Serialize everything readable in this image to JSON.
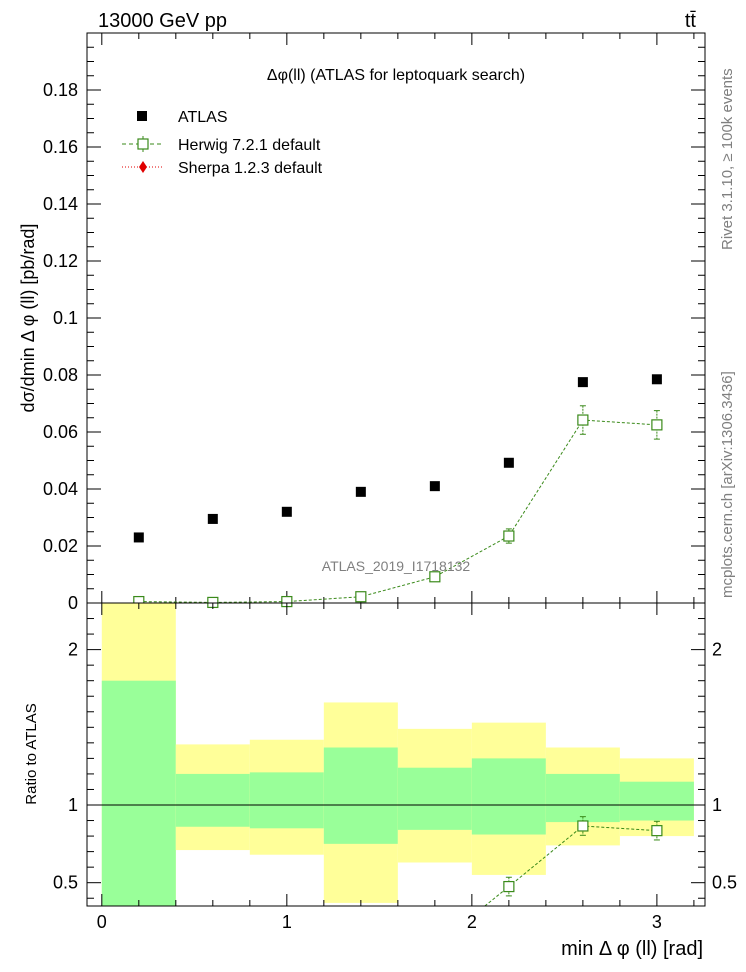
{
  "header": {
    "energy": "13000 GeV pp",
    "process": "tt̄",
    "plot_title": "Δφ(ll) (ATLAS for leptoquark search)",
    "watermark": "ATLAS_2019_I1718132",
    "side_rivet": "Rivet 3.1.10, ≥ 100k events",
    "side_mcplots": "mcplots.cern.ch [arXiv:1306.3436]"
  },
  "chart_data": [
    {
      "type": "scatter",
      "title": "Δφ(ll) (ATLAS for leptoquark search)",
      "xlabel": "min Δ φ (ll) [rad]",
      "ylabel": "dσ/dmin Δ φ (ll) [pb/rad]",
      "xlim": [
        -0.08,
        3.26
      ],
      "ylim": [
        0,
        0.2
      ],
      "xticks": [
        0,
        1,
        2,
        3
      ],
      "yticks": [
        0,
        0.02,
        0.04,
        0.06,
        0.08,
        0.1,
        0.12,
        0.14,
        0.16,
        0.18
      ],
      "ytick_labels": [
        "0",
        "0.02",
        "0.04",
        "0.06",
        "0.08",
        "0.1",
        "0.12",
        "0.14",
        "0.16",
        "0.18"
      ],
      "legend_position": "top-left",
      "series": [
        {
          "name": "ATLAS",
          "color": "#000000",
          "marker": "filled-square",
          "x": [
            0.2,
            0.6,
            1.0,
            1.4,
            1.8,
            2.2,
            2.6,
            3.0
          ],
          "y": [
            0.023,
            0.0295,
            0.032,
            0.039,
            0.041,
            0.0492,
            0.0775,
            0.0785
          ]
        },
        {
          "name": "Herwig 7.2.1 default",
          "color": "#3a8a1a",
          "marker": "open-square",
          "line": "dashed",
          "x": [
            0.2,
            0.6,
            1.0,
            1.4,
            1.8,
            2.2,
            2.6,
            3.0
          ],
          "y": [
            0.0005,
            0.0002,
            0.0005,
            0.0022,
            0.0092,
            0.0235,
            0.0642,
            0.0625
          ],
          "err": [
            0.0003,
            0.0002,
            0.0003,
            0.0006,
            0.0012,
            0.0025,
            0.005,
            0.005
          ]
        },
        {
          "name": "Sherpa 1.2.3 default",
          "color": "#e00000",
          "marker": "filled-diamond",
          "line": "dotted",
          "x": [],
          "y": []
        }
      ]
    },
    {
      "type": "ratio",
      "ylabel": "Ratio to ATLAS",
      "xlim": [
        -0.08,
        3.26
      ],
      "ylim": [
        0.35,
        2.3
      ],
      "yticks": [
        0.5,
        1,
        2
      ],
      "ytick_labels": [
        "0.5",
        "1",
        "2"
      ],
      "reference_line": 1,
      "band_colors": {
        "inner": "#99ff99",
        "outer": "#ffff99"
      },
      "bins": [
        {
          "lo": 0.0,
          "hi": 0.4,
          "outer": [
            0.35,
            2.3
          ],
          "inner": [
            0.35,
            1.8
          ]
        },
        {
          "lo": 0.4,
          "hi": 0.8,
          "outer": [
            0.71,
            1.39
          ],
          "inner": [
            0.86,
            1.2
          ]
        },
        {
          "lo": 0.8,
          "hi": 1.2,
          "outer": [
            0.68,
            1.42
          ],
          "inner": [
            0.85,
            1.21
          ]
        },
        {
          "lo": 1.2,
          "hi": 1.6,
          "outer": [
            0.37,
            1.66
          ],
          "inner": [
            0.75,
            1.37
          ]
        },
        {
          "lo": 1.6,
          "hi": 2.0,
          "outer": [
            0.63,
            1.49
          ],
          "inner": [
            0.84,
            1.24
          ]
        },
        {
          "lo": 2.0,
          "hi": 2.4,
          "outer": [
            0.55,
            1.53
          ],
          "inner": [
            0.81,
            1.3
          ]
        },
        {
          "lo": 2.4,
          "hi": 2.8,
          "outer": [
            0.74,
            1.37
          ],
          "inner": [
            0.89,
            1.2
          ]
        },
        {
          "lo": 2.8,
          "hi": 3.2,
          "outer": [
            0.8,
            1.3
          ],
          "inner": [
            0.9,
            1.15
          ]
        }
      ],
      "series": [
        {
          "name": "Herwig 7.2.1 default",
          "color": "#3a8a1a",
          "x": [
            2.2,
            2.6,
            3.0
          ],
          "y": [
            0.475,
            0.865,
            0.835
          ],
          "err": [
            0.06,
            0.06,
            0.06
          ]
        }
      ]
    }
  ]
}
